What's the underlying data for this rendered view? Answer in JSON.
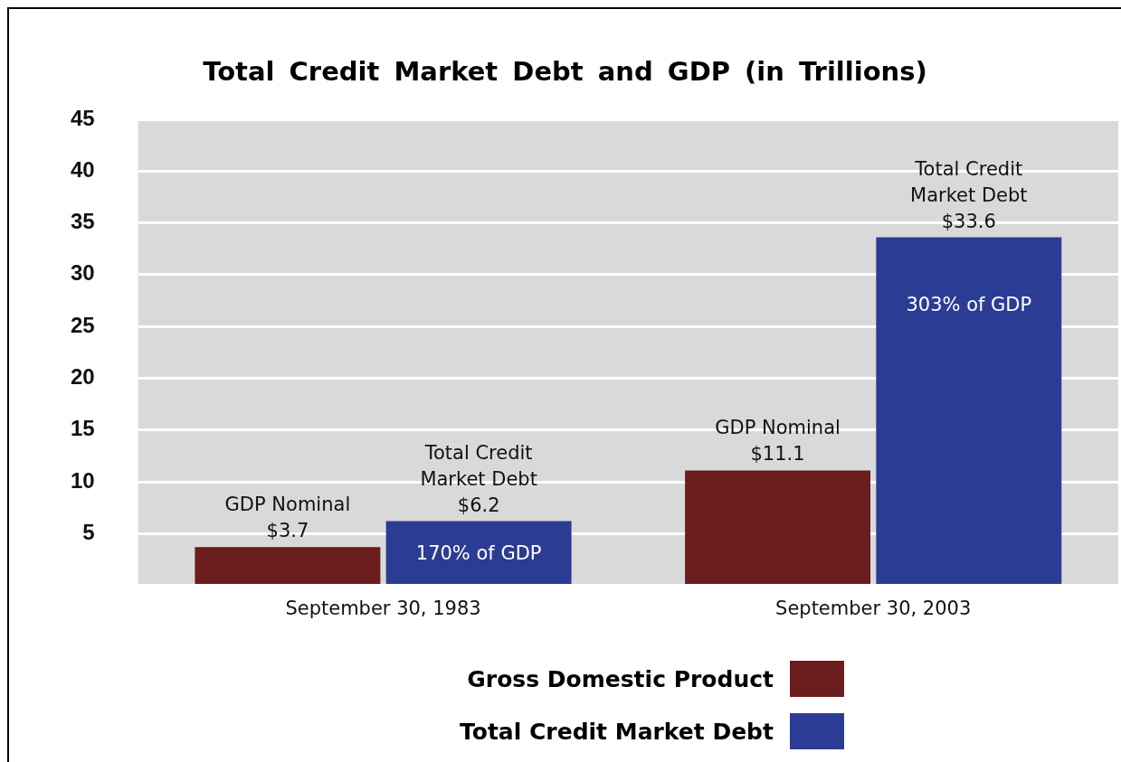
{
  "chart_data": {
    "type": "bar",
    "title": "Total Credit Market Debt and GDP (in Trillions)",
    "categories": [
      "September 30, 1983",
      "September 30, 2003"
    ],
    "series": [
      {
        "name": "Gross Domestic Product",
        "color": "#6b1c1c",
        "values": [
          3.7,
          11.1
        ],
        "value_labels": [
          "GDP Nominal\n$3.7",
          "GDP Nominal\n$11.1"
        ]
      },
      {
        "name": "Total Credit Market Debt",
        "color": "#2b3c94",
        "values": [
          6.2,
          33.6
        ],
        "value_labels": [
          "Total Credit\nMarket Debt\n$6.2",
          "Total Credit\nMarket Debt\n$33.6"
        ]
      }
    ],
    "annotations": [
      {
        "text": "170% of GDP",
        "x": "September 30, 1983",
        "y": 3
      },
      {
        "text": "303% of GDP",
        "x": "September 30, 2003",
        "y": 27
      }
    ],
    "ylim": [
      0,
      45
    ],
    "yticks": [
      {
        "value": 0,
        "label": null
      },
      5,
      10,
      15,
      20,
      25,
      30,
      35,
      40,
      45
    ],
    "grid": "y",
    "legend": "bottom"
  }
}
